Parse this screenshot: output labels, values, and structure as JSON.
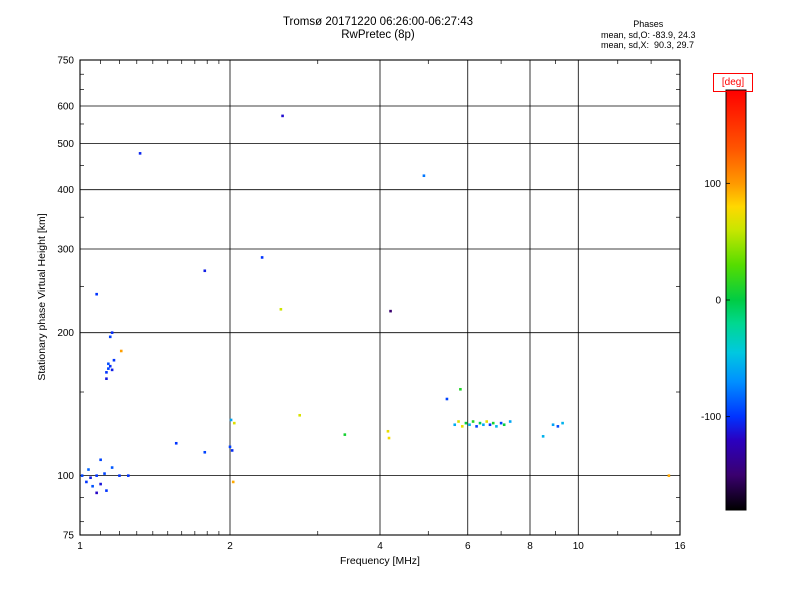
{
  "annotations": {
    "phases_title": "Phases",
    "o_stats": "mean, sd,O: -83.9, 24.3",
    "x_stats": "mean, sd,X:  90.3, 29.7"
  },
  "chart_data": {
    "type": "scatter",
    "title": "Tromsø 20171220 06:26:00-06:27:43",
    "subtitle": "RwPretec (8p)",
    "xlabel": "Frequency [MHz]",
    "ylabel": "Stationary phase Virtual Height [km]",
    "x_scale": "log",
    "y_scale": "log",
    "xlim": [
      1,
      16
    ],
    "ylim": [
      75,
      750
    ],
    "x_major_ticks": [
      1,
      2,
      4,
      6,
      8,
      10,
      16
    ],
    "x_minor_ticks": [
      1.1,
      1.2,
      1.3,
      1.4,
      1.5,
      1.6,
      1.7,
      1.8,
      1.9,
      3,
      5,
      7,
      9,
      12,
      14
    ],
    "y_major_ticks": [
      75,
      100,
      200,
      300,
      400,
      500,
      600,
      750
    ],
    "y_minor_ticks": [
      80,
      90,
      150,
      250,
      350,
      450,
      550,
      650,
      700
    ],
    "grid": true,
    "colorbar": {
      "label": "[deg]",
      "min": -180,
      "max": 180,
      "ticks": [
        100,
        0,
        -100
      ],
      "stops": [
        [
          -180,
          "#000000"
        ],
        [
          -150,
          "#3a006f"
        ],
        [
          -120,
          "#2a00c0"
        ],
        [
          -100,
          "#0033ff"
        ],
        [
          -70,
          "#0090ff"
        ],
        [
          -45,
          "#00c8e0"
        ],
        [
          -20,
          "#00d890"
        ],
        [
          0,
          "#00cc44"
        ],
        [
          30,
          "#55dd00"
        ],
        [
          60,
          "#c8e600"
        ],
        [
          80,
          "#ffd800"
        ],
        [
          100,
          "#ff9900"
        ],
        [
          130,
          "#ff5500"
        ],
        [
          180,
          "#ff0000"
        ]
      ]
    },
    "points": [
      [
        1.01,
        100,
        -95
      ],
      [
        1.03,
        97,
        -100
      ],
      [
        1.05,
        99,
        -108
      ],
      [
        1.06,
        95,
        -90
      ],
      [
        1.08,
        100,
        -100
      ],
      [
        1.1,
        96,
        -112
      ],
      [
        1.12,
        101,
        -95
      ],
      [
        1.13,
        93,
        -100
      ],
      [
        1.16,
        104,
        -88
      ],
      [
        1.2,
        100,
        -100
      ],
      [
        1.08,
        92,
        -118
      ],
      [
        1.04,
        103,
        -85
      ],
      [
        1.1,
        108,
        -95
      ],
      [
        1.25,
        100,
        -100
      ],
      [
        1.13,
        165,
        -100
      ],
      [
        1.14,
        168,
        -95
      ],
      [
        1.15,
        170,
        -102
      ],
      [
        1.16,
        167,
        -108
      ],
      [
        1.14,
        172,
        -92
      ],
      [
        1.17,
        175,
        -100
      ],
      [
        1.15,
        196,
        -96
      ],
      [
        1.16,
        200,
        -103
      ],
      [
        1.21,
        183,
        98
      ],
      [
        1.13,
        160,
        -110
      ],
      [
        1.08,
        241,
        -100
      ],
      [
        1.32,
        477,
        -105
      ],
      [
        1.78,
        270,
        -108
      ],
      [
        1.56,
        117,
        -100
      ],
      [
        1.78,
        112,
        -95
      ],
      [
        2.01,
        131,
        -60
      ],
      [
        2.04,
        129,
        68
      ],
      [
        2.0,
        115,
        -96
      ],
      [
        2.02,
        113,
        -103
      ],
      [
        2.03,
        97,
        95
      ],
      [
        2.32,
        288,
        -100
      ],
      [
        2.55,
        572,
        -115
      ],
      [
        2.53,
        224,
        62
      ],
      [
        2.76,
        134,
        66
      ],
      [
        3.4,
        122,
        8
      ],
      [
        4.2,
        222,
        -150
      ],
      [
        4.15,
        124,
        72
      ],
      [
        4.17,
        120,
        76
      ],
      [
        4.9,
        428,
        -78
      ],
      [
        5.45,
        145,
        -95
      ],
      [
        5.8,
        152,
        12
      ],
      [
        5.65,
        128,
        -58
      ],
      [
        5.75,
        130,
        66
      ],
      [
        5.85,
        127,
        72
      ],
      [
        5.95,
        129,
        4
      ],
      [
        6.05,
        128,
        -55
      ],
      [
        6.15,
        130,
        12
      ],
      [
        6.25,
        127,
        -95
      ],
      [
        6.35,
        129,
        -2
      ],
      [
        6.45,
        128,
        -60
      ],
      [
        6.55,
        130,
        70
      ],
      [
        6.65,
        128,
        -100
      ],
      [
        6.75,
        129,
        8
      ],
      [
        6.85,
        127,
        -52
      ],
      [
        7.0,
        129,
        -95
      ],
      [
        7.1,
        128,
        2
      ],
      [
        7.3,
        130,
        -60
      ],
      [
        8.5,
        121,
        -55
      ],
      [
        8.9,
        128,
        -62
      ],
      [
        9.1,
        127,
        -92
      ],
      [
        9.3,
        129,
        -55
      ],
      [
        15.2,
        100,
        96
      ]
    ]
  }
}
